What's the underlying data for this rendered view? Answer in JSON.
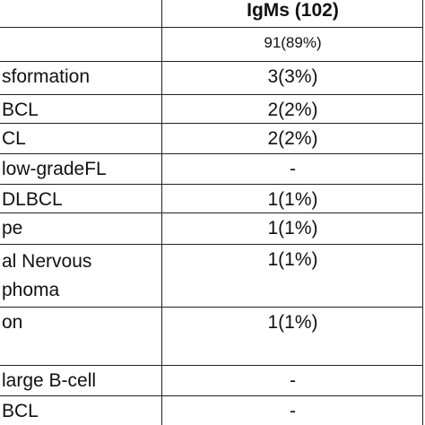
{
  "table": {
    "header": [
      "",
      "IgMs (102)"
    ],
    "rows": [
      [
        "",
        "91(89%)"
      ],
      [
        "sformation",
        "3(3%)"
      ],
      [
        "BCL",
        "2(2%)"
      ],
      [
        "CL",
        "2(2%)"
      ],
      [
        "low-gradeFL",
        "-"
      ],
      [
        "DLBCL",
        "1(1%)"
      ],
      [
        "pe",
        "1(1%)"
      ],
      [
        [
          "al Nervous",
          "phoma"
        ],
        "1(1%)"
      ],
      [
        "on",
        "1(1%)"
      ],
      [
        "large B-cell",
        "-"
      ],
      [
        "BCL",
        "-"
      ]
    ]
  }
}
